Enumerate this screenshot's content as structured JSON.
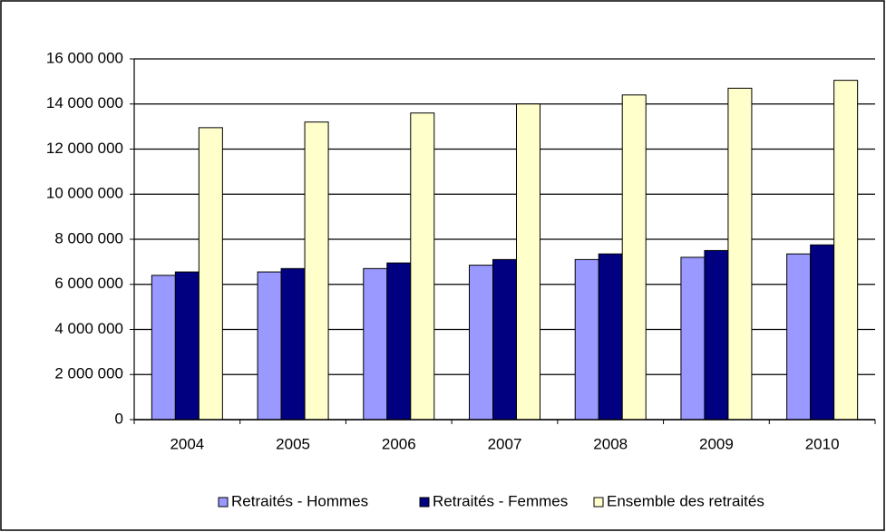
{
  "chart_data": {
    "type": "bar",
    "categories": [
      "2004",
      "2005",
      "2006",
      "2007",
      "2008",
      "2009",
      "2010"
    ],
    "series": [
      {
        "name": "Retraités - Hommes",
        "color": "#9999ff",
        "values": [
          6400000,
          6550000,
          6700000,
          6850000,
          7100000,
          7200000,
          7350000
        ]
      },
      {
        "name": "Retraités - Femmes",
        "color": "#000080",
        "values": [
          6550000,
          6700000,
          6950000,
          7100000,
          7350000,
          7500000,
          7750000
        ]
      },
      {
        "name": "Ensemble des retraités",
        "color": "#ffffcc",
        "values": [
          12950000,
          13200000,
          13600000,
          14000000,
          14400000,
          14700000,
          15050000
        ]
      }
    ],
    "ylim": [
      0,
      16000000
    ],
    "yticks": [
      0,
      {
        "value": 2000000,
        "label": "2 000 000"
      },
      {
        "value": 4000000,
        "label": "4 000 000"
      },
      {
        "value": 6000000,
        "label": "6 000 000"
      },
      {
        "value": 8000000,
        "label": "8 000 000"
      },
      {
        "value": 10000000,
        "label": "10 000 000"
      },
      {
        "value": 12000000,
        "label": "12 000 000"
      },
      {
        "value": 14000000,
        "label": "14 000 000"
      },
      {
        "value": 16000000,
        "label": "16 000 000"
      }
    ],
    "grid": true,
    "legend": "bottom"
  }
}
